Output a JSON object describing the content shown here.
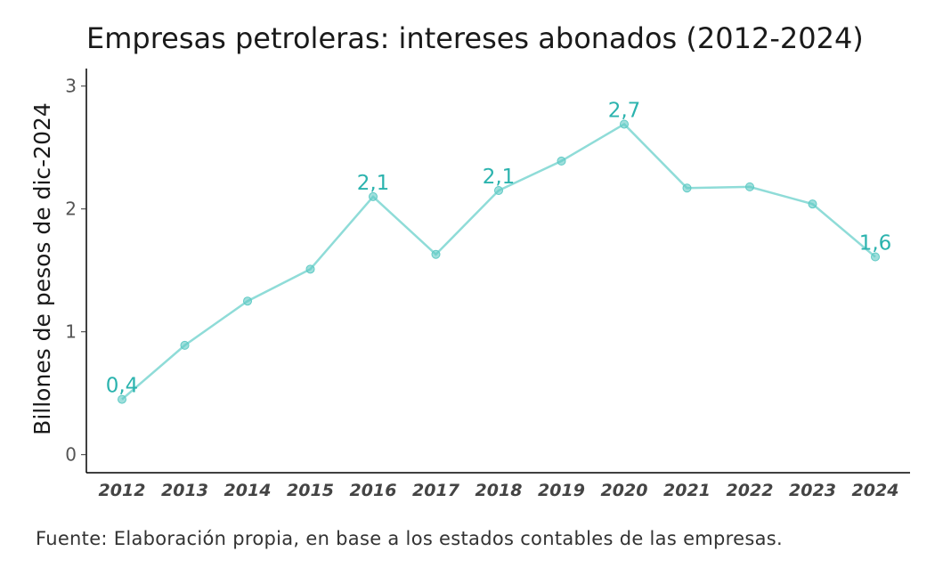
{
  "chart_data": {
    "type": "line",
    "title": "Empresas petroleras: intereses abonados (2012-2024)",
    "xlabel": "",
    "ylabel": "Billones de pesos de dic-2024",
    "ylim": [
      0,
      3
    ],
    "yticks": [
      "0",
      "1",
      "2",
      "3"
    ],
    "ytick_values": [
      0,
      1,
      2,
      3
    ],
    "grid": false,
    "categories": [
      "2012",
      "2013",
      "2014",
      "2015",
      "2016",
      "2017",
      "2018",
      "2019",
      "2020",
      "2021",
      "2022",
      "2023",
      "2024"
    ],
    "values": [
      0.45,
      0.89,
      1.25,
      1.51,
      2.1,
      1.63,
      2.15,
      2.39,
      2.69,
      2.17,
      2.18,
      2.04,
      1.61
    ],
    "data_labels": [
      "0,4",
      "",
      "",
      "",
      "2,1",
      "",
      "2,1",
      "",
      "2,7",
      "",
      "",
      "",
      "1,6"
    ],
    "colors": {
      "line": "#8fdcd8",
      "point": "#5fcac5",
      "label": "#2bb3ae",
      "axis": "#000000"
    }
  },
  "source": "Fuente: Elaboración propia, en base a los estados contables de las empresas."
}
